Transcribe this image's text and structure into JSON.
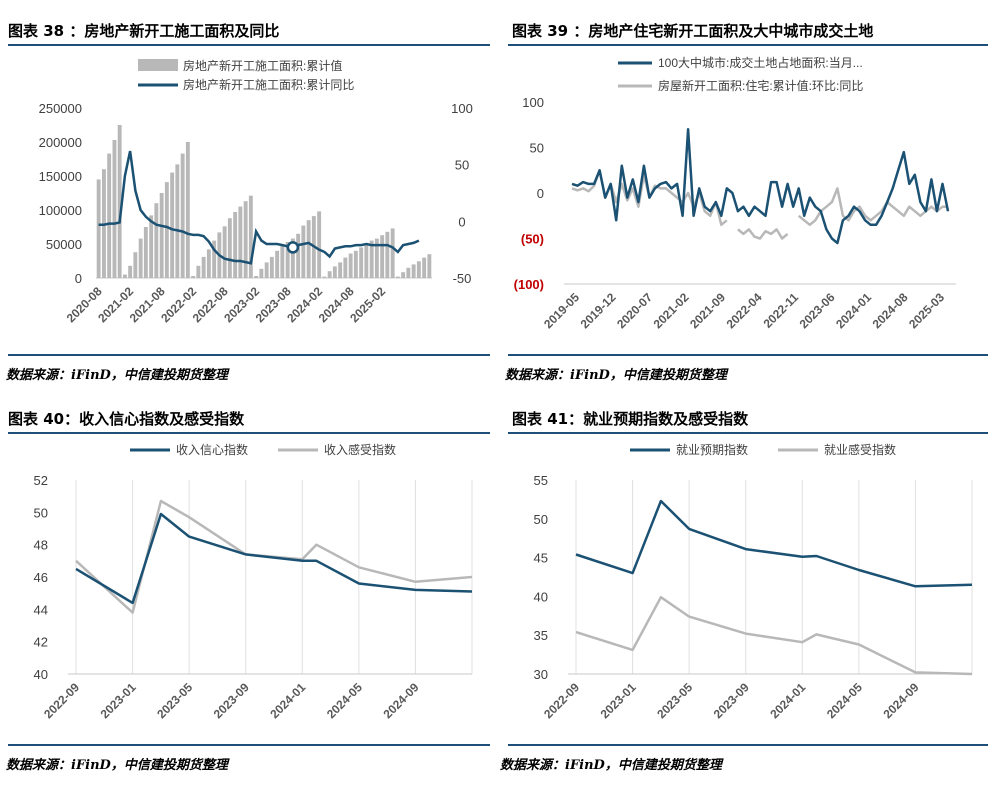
{
  "charts": [
    {
      "title": "图表 38 ：房地产新开工施工面积及同比",
      "source": "数据来源：iFinD，中信建投期货整理",
      "chart_data": {
        "type": "bar",
        "legend": [
          "房地产新开工施工面积:累计值",
          "房地产新开工施工面积:累计同比"
        ],
        "legend_position": "top",
        "grid": false,
        "x_ticks": [
          "2020-08",
          "2021-02",
          "2021-08",
          "2022-02",
          "2022-08",
          "2023-02",
          "2023-08",
          "2024-02",
          "2024-08",
          "2025-02"
        ],
        "y_left_ticks": [
          "0",
          "50000",
          "100000",
          "150000",
          "200000",
          "250000"
        ],
        "y_left_range": [
          0,
          250000
        ],
        "y_right_ticks": [
          "-50",
          "0",
          "50",
          "100"
        ],
        "y_right_range": [
          -50,
          100
        ],
        "series": [
          {
            "name": "房地产新开工施工面积:累计值",
            "type": "bar",
            "axis": "left",
            "values": [
              145000,
              160000,
              183000,
              203000,
              225000,
              5000,
              18000,
              38000,
              58000,
              75000,
              92000,
              110000,
              125000,
              141000,
              155000,
              167000,
              183000,
              200000,
              3000,
              18000,
              31000,
              42000,
              55000,
              67000,
              76000,
              88000,
              97000,
              105000,
              113000,
              121000,
              3000,
              13500,
              23000,
              31000,
              40000,
              48000,
              53000,
              58000,
              65000,
              77000,
              85000,
              91000,
              98000,
              2000,
              10000,
              17000,
              23000,
              30000,
              36000,
              40000,
              45000,
              50000,
              55000,
              58000,
              63000,
              68000,
              73000,
              2000,
              8500,
              15000,
              20000,
              24500,
              30000,
              35000
            ]
          },
          {
            "name": "房地产新开工施工面积:累计同比",
            "type": "line",
            "axis": "right",
            "values": [
              -3,
              -3,
              -2,
              -2,
              -1,
              40,
              62,
              27,
              10,
              4,
              0,
              -3,
              -4,
              -5,
              -7,
              -8,
              -9,
              -11,
              -12,
              -12,
              -13,
              -18,
              -25,
              -30,
              -33,
              -34,
              -35,
              -35,
              -36,
              -37,
              -9,
              -17,
              -20,
              -20,
              -20,
              -21,
              -22,
              -23,
              -21,
              -20,
              -19,
              -22,
              -25,
              -27,
              -31,
              -24,
              -23,
              -22,
              -22,
              -21,
              -21,
              -20,
              -21,
              -21,
              -21,
              -21,
              -23,
              -27,
              -21,
              -20,
              -19,
              -17
            ]
          }
        ],
        "highlight_marker_index": 37
      }
    },
    {
      "title": "图表 39 ：房地产住宅新开工面积及大中城市成交土地",
      "source": "数据来源：iFinD，中信建投期货整理",
      "chart_data": {
        "type": "line",
        "legend": [
          "100大中城市:成交土地占地面积:当月...",
          "房屋新开工面积:住宅:累计值:环比:同比"
        ],
        "legend_position": "top",
        "grid": false,
        "x_ticks": [
          "2019-05",
          "2019-12",
          "2020-07",
          "2021-02",
          "2021-09",
          "2022-04",
          "2022-11",
          "2023-06",
          "2024-01",
          "2024-08",
          "2025-03"
        ],
        "y_ticks": [
          "(100)",
          "(50)",
          "0",
          "50",
          "100"
        ],
        "y_range": [
          -100,
          100
        ],
        "series": [
          {
            "name": "100大中城市:成交土地占地面积:当月...",
            "values": [
              10,
              8,
              12,
              10,
              10,
              25,
              -5,
              10,
              -30,
              30,
              -5,
              15,
              -10,
              30,
              -5,
              5,
              10,
              12,
              5,
              10,
              -25,
              70,
              -25,
              5,
              -15,
              -20,
              -10,
              -25,
              5,
              0,
              -20,
              -15,
              -25,
              -15,
              -20,
              -25,
              12,
              12,
              -15,
              10,
              -15,
              5,
              -25,
              -5,
              -15,
              -20,
              -40,
              -50,
              -55,
              -30,
              -25,
              -15,
              -20,
              -30,
              -35,
              -35,
              -25,
              -10,
              5,
              25,
              45,
              10,
              20,
              -10,
              -20,
              15,
              -20,
              10,
              -20
            ]
          },
          {
            "name": "房屋新开工面积:住宅:累计值:环比:同比",
            "values": [
              5,
              3,
              5,
              2,
              8,
              25,
              -5,
              10,
              -10,
              10,
              -8,
              5,
              -15,
              20,
              -5,
              8,
              5,
              5,
              0,
              -5,
              -10,
              0,
              -15,
              0,
              -20,
              -25,
              -10,
              -35,
              -30,
              null,
              -40,
              -45,
              -40,
              -48,
              -50,
              -42,
              -45,
              -40,
              -50,
              -45,
              null,
              -25,
              -30,
              -35,
              -30,
              -20,
              -15,
              -10,
              5,
              -25,
              -30,
              -20,
              -15,
              -25,
              -30,
              -25,
              -20,
              -10,
              -15,
              -20,
              -25,
              -15,
              -20,
              -25,
              -20,
              -15,
              -20,
              -15,
              -15
            ]
          }
        ]
      }
    },
    {
      "title": "图表 40：收入信心指数及感受指数",
      "source": "数据来源：iFinD，中信建投期货整理",
      "chart_data": {
        "type": "line",
        "legend": [
          "收入信心指数",
          "收入感受指数"
        ],
        "legend_position": "top",
        "grid": true,
        "x_ticks": [
          "2022-09",
          "2023-01",
          "2023-05",
          "2023-09",
          "2024-01",
          "2024-05",
          "2024-09"
        ],
        "y_ticks": [
          "40",
          "42",
          "44",
          "46",
          "48",
          "50",
          "52"
        ],
        "y_range": [
          40,
          52
        ],
        "series": [
          {
            "name": "收入信心指数",
            "values": [
              46.5,
              44.4,
              49.9,
              48.5,
              47.4,
              47.0,
              47.0,
              45.6,
              45.2,
              45.1
            ]
          },
          {
            "name": "收入感受指数",
            "values": [
              47.0,
              43.8,
              50.7,
              49.7,
              47.4,
              47.1,
              48.0,
              46.6,
              45.7,
              46.0
            ]
          }
        ]
      }
    },
    {
      "title": "图表 41：就业预期指数及感受指数",
      "source": "数据来源：iFinD，中信建投期货整理",
      "chart_data": {
        "type": "line",
        "legend": [
          "就业预期指数",
          "就业感受指数"
        ],
        "legend_position": "top",
        "grid": true,
        "x_ticks": [
          "2022-09",
          "2023-01",
          "2023-05",
          "2023-09",
          "2024-01",
          "2024-05",
          "2024-09"
        ],
        "y_ticks": [
          "30",
          "35",
          "40",
          "45",
          "50",
          "55"
        ],
        "y_range": [
          30,
          55
        ],
        "series": [
          {
            "name": "就业预期指数",
            "values": [
              45.4,
              43.0,
              52.3,
              48.7,
              46.1,
              45.1,
              45.2,
              43.4,
              41.3,
              41.5
            ]
          },
          {
            "name": "就业感受指数",
            "values": [
              35.4,
              33.1,
              39.9,
              37.4,
              35.2,
              34.1,
              35.1,
              33.8,
              30.2,
              30.0
            ]
          }
        ]
      }
    }
  ],
  "colors": {
    "dark": "#1b5173",
    "gray": "#b8b8b8",
    "rule": "#1f4e79",
    "red": "#c00000",
    "axis": "#c8c8c8"
  }
}
